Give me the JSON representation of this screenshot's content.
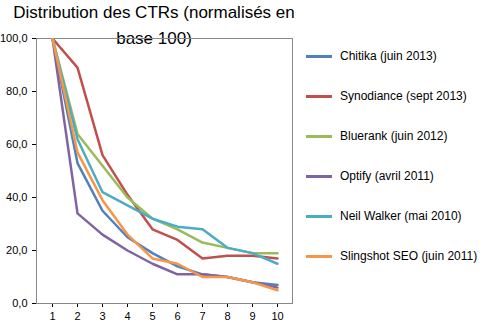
{
  "chart_data": {
    "type": "line",
    "title": "Distribution des CTRs (normalisés en base 100)",
    "categories": [
      "1",
      "2",
      "3",
      "4",
      "5",
      "6",
      "7",
      "8",
      "9",
      "10"
    ],
    "series": [
      {
        "name": "Chitika (juin 2013)",
        "color": "#4F81BD",
        "values": [
          100,
          53,
          35,
          25,
          19,
          14,
          11,
          10,
          8,
          7
        ]
      },
      {
        "name": "Synodiance (sept 2013)",
        "color": "#C0504D",
        "values": [
          100,
          89,
          56,
          41,
          28,
          24,
          17,
          18,
          18,
          17
        ]
      },
      {
        "name": "Bluerank (juin 2012)",
        "color": "#9BBB59",
        "values": [
          100,
          64,
          52,
          40,
          32,
          28,
          23,
          21,
          19,
          19
        ]
      },
      {
        "name": "Optify (avril 2011)",
        "color": "#8064A2",
        "values": [
          100,
          34,
          26,
          20,
          15,
          11,
          11,
          10,
          8,
          6
        ]
      },
      {
        "name": "Neil Walker (mai 2010)",
        "color": "#4BACC6",
        "values": [
          100,
          62,
          42,
          37,
          32,
          29,
          28,
          21,
          19,
          15
        ]
      },
      {
        "name": "Slingshot SEO (juin 2011)",
        "color": "#F79646",
        "values": [
          100,
          57,
          39,
          26,
          17,
          15,
          10,
          10,
          8,
          5
        ]
      }
    ],
    "ylim": [
      0,
      100
    ],
    "yticks": [
      {
        "value": 0,
        "label": "0,0"
      },
      {
        "value": 20,
        "label": "20,0"
      },
      {
        "value": 40,
        "label": "40,0"
      },
      {
        "value": 60,
        "label": "60,0"
      },
      {
        "value": 80,
        "label": "80,0"
      },
      {
        "value": 100,
        "label": "100,0"
      }
    ],
    "grid": false,
    "legend": "right"
  }
}
